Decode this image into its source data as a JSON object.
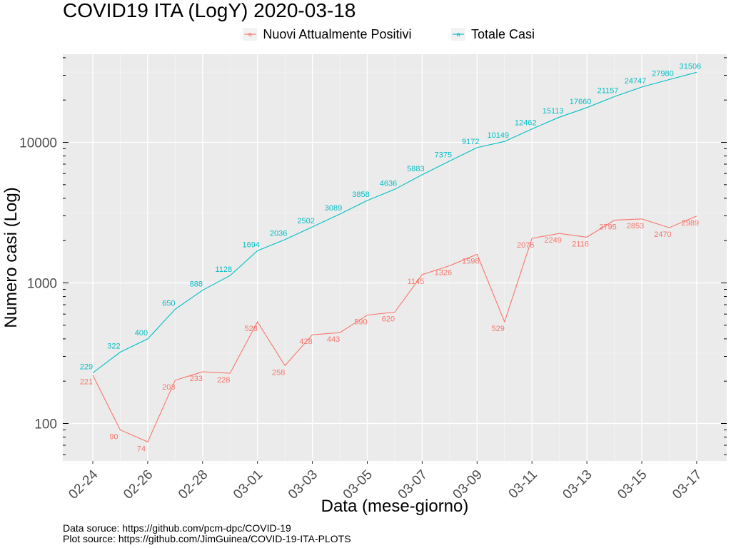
{
  "chart_data": {
    "type": "line",
    "title": "COVID19 ITA (LogY) 2020-03-18",
    "xlabel": "Data (mese-giorno)",
    "ylabel": "Numero casi (Log)",
    "y_scale": "log10",
    "ylim": [
      60,
      45000
    ],
    "grid": true,
    "legend_position": "top",
    "x": [
      "02-24",
      "02-25",
      "02-26",
      "02-27",
      "02-28",
      "02-29",
      "03-01",
      "03-02",
      "03-03",
      "03-04",
      "03-05",
      "03-06",
      "03-07",
      "03-08",
      "03-09",
      "03-10",
      "03-11",
      "03-12",
      "03-13",
      "03-14",
      "03-15",
      "03-16",
      "03-17"
    ],
    "x_tick_labels": [
      "02-24",
      "02-26",
      "02-28",
      "03-01",
      "03-03",
      "03-05",
      "03-07",
      "03-09",
      "03-11",
      "03-13",
      "03-15",
      "03-17"
    ],
    "y_tick_labels": [
      {
        "value": 100,
        "label": "100"
      },
      {
        "value": 1000,
        "label": "1000"
      },
      {
        "value": 10000,
        "label": "10000"
      }
    ],
    "series": [
      {
        "name": "Nuovi Attualmente Positivi",
        "color": "#F8766D",
        "values": [
          221,
          90,
          74,
          203,
          233,
          228,
          528,
          258,
          428,
          443,
          590,
          620,
          1145,
          1326,
          1598,
          529,
          2076,
          2249,
          2116,
          2795,
          2853,
          2470,
          2989
        ]
      },
      {
        "name": "Totale Casi",
        "color": "#00BFC4",
        "values": [
          229,
          322,
          400,
          650,
          888,
          1128,
          1694,
          2036,
          2502,
          3089,
          3858,
          4636,
          5883,
          7375,
          9172,
          10149,
          12462,
          15113,
          17660,
          21157,
          24747,
          27980,
          31506
        ]
      }
    ]
  },
  "captions": {
    "line1": "Data soruce: https://github.com/pcm-dpc/COVID-19",
    "line2": "Plot source: https://github.com/JimGuinea/COVID-19-ITA-PLOTS"
  }
}
